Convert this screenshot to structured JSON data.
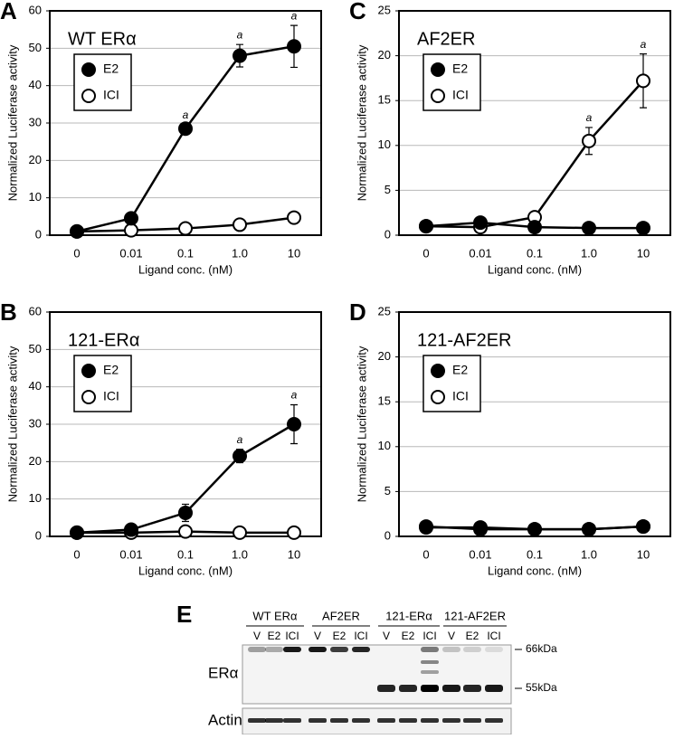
{
  "chart_data": [
    {
      "type": "line",
      "panel": "A",
      "title": "WT ERα",
      "y_label": "Normalized Luciferase activity",
      "x_label": "Ligand conc. (nM)",
      "categories": [
        "0",
        "0.01",
        "0.1",
        "1.0",
        "10"
      ],
      "ylim": [
        0,
        60
      ],
      "yticks": [
        0,
        10,
        20,
        30,
        40,
        50,
        60
      ],
      "grid": true,
      "legend": "upper-left",
      "series": [
        {
          "name": "E2",
          "color": "#000000",
          "values": [
            1,
            4.5,
            28.5,
            48,
            50.5
          ],
          "errors": [
            null,
            null,
            1,
            3,
            5.6
          ],
          "annotations": [
            null,
            null,
            "a",
            "a",
            "a"
          ]
        },
        {
          "name": "ICI",
          "color": "#ffffff",
          "values": [
            1,
            1.3,
            1.8,
            2.8,
            4.7
          ],
          "errors": [
            null,
            null,
            null,
            null,
            null
          ],
          "annotations": [
            null,
            null,
            null,
            null,
            null
          ]
        }
      ]
    },
    {
      "type": "line",
      "panel": "B",
      "title": "121-ERα",
      "y_label": "Normalized Luciferase activity",
      "x_label": "Ligand conc. (nM)",
      "categories": [
        "0",
        "0.01",
        "0.1",
        "1.0",
        "10"
      ],
      "ylim": [
        0,
        60
      ],
      "yticks": [
        0,
        10,
        20,
        30,
        40,
        50,
        60
      ],
      "grid": true,
      "legend": "upper-left",
      "series": [
        {
          "name": "E2",
          "color": "#000000",
          "values": [
            1,
            1.8,
            6.3,
            21.5,
            30
          ],
          "errors": [
            null,
            null,
            2.3,
            1.8,
            5.2
          ],
          "annotations": [
            null,
            null,
            null,
            "a",
            "a"
          ]
        },
        {
          "name": "ICI",
          "color": "#ffffff",
          "values": [
            1,
            1,
            1.3,
            1,
            1
          ],
          "errors": [
            null,
            null,
            null,
            null,
            null
          ],
          "annotations": [
            null,
            null,
            null,
            null,
            null
          ]
        }
      ]
    },
    {
      "type": "line",
      "panel": "C",
      "title": "AF2ER",
      "y_label": "Normalized Luciferase activity",
      "x_label": "Ligand conc. (nM)",
      "categories": [
        "0",
        "0.01",
        "0.1",
        "1.0",
        "10"
      ],
      "ylim": [
        0,
        25
      ],
      "yticks": [
        0,
        5,
        10,
        15,
        20,
        25
      ],
      "grid": true,
      "legend": "upper-left",
      "series": [
        {
          "name": "E2",
          "color": "#000000",
          "values": [
            1,
            1.4,
            0.9,
            0.8,
            0.8
          ],
          "errors": [
            null,
            null,
            null,
            null,
            null
          ],
          "annotations": [
            null,
            null,
            null,
            null,
            null
          ]
        },
        {
          "name": "ICI",
          "color": "#ffffff",
          "values": [
            1,
            0.9,
            2,
            10.5,
            17.2
          ],
          "errors": [
            null,
            null,
            null,
            1.5,
            3
          ],
          "annotations": [
            null,
            null,
            null,
            "a",
            "a"
          ]
        }
      ]
    },
    {
      "type": "line",
      "panel": "D",
      "title": "121-AF2ER",
      "y_label": "Normalized Luciferase activity",
      "x_label": "Ligand conc. (nM)",
      "categories": [
        "0",
        "0.01",
        "0.1",
        "1.0",
        "10"
      ],
      "ylim": [
        0,
        25
      ],
      "yticks": [
        0,
        5,
        10,
        15,
        20,
        25
      ],
      "grid": true,
      "legend": "upper-left",
      "series": [
        {
          "name": "E2",
          "color": "#000000",
          "values": [
            1,
            1,
            0.8,
            0.8,
            1.1
          ],
          "errors": [
            null,
            null,
            null,
            null,
            null
          ],
          "annotations": [
            null,
            null,
            null,
            null,
            null
          ]
        },
        {
          "name": "ICI",
          "color": "#ffffff",
          "values": [
            1.1,
            0.8,
            0.8,
            0.8,
            1.1
          ],
          "errors": [
            null,
            null,
            null,
            null,
            null
          ],
          "annotations": [
            null,
            null,
            null,
            null,
            null
          ]
        }
      ]
    }
  ],
  "blot": {
    "panel": "E",
    "groups": [
      {
        "name": "WT ERα",
        "lanes": [
          "V",
          "E2",
          "ICI"
        ]
      },
      {
        "name": "AF2ER",
        "lanes": [
          "V",
          "E2",
          "ICI"
        ]
      },
      {
        "name": "121-ERα",
        "lanes": [
          "V",
          "E2",
          "ICI"
        ]
      },
      {
        "name": "121-AF2ER",
        "lanes": [
          "V",
          "E2",
          "ICI"
        ]
      }
    ],
    "rows": [
      "ERα",
      "Actin"
    ],
    "markers": [
      "66kDa",
      "55kDa"
    ]
  }
}
